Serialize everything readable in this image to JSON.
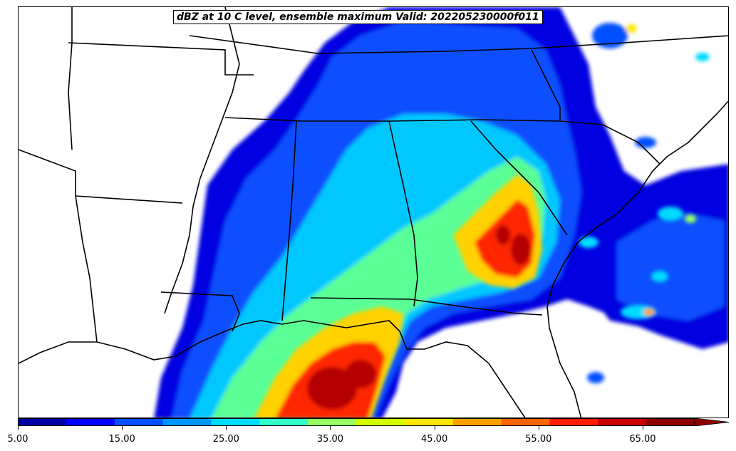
{
  "title": "dBZ at 10 C level, ensemble maximum Valid: 202205230000f011",
  "colorbar": {
    "min": 5,
    "max": 70,
    "step": 5,
    "extend": "max",
    "tick_labels": [
      "5.00",
      "15.00",
      "25.00",
      "35.00",
      "45.00",
      "55.00",
      "65.00"
    ],
    "colors": [
      "#0000a8",
      "#0000ff",
      "#0050ff",
      "#0096ff",
      "#00dcff",
      "#32ffc8",
      "#96ff64",
      "#d2ff00",
      "#ffe600",
      "#ffa000",
      "#ff6400",
      "#ff1e00",
      "#c80000",
      "#8b0000"
    ]
  }
}
